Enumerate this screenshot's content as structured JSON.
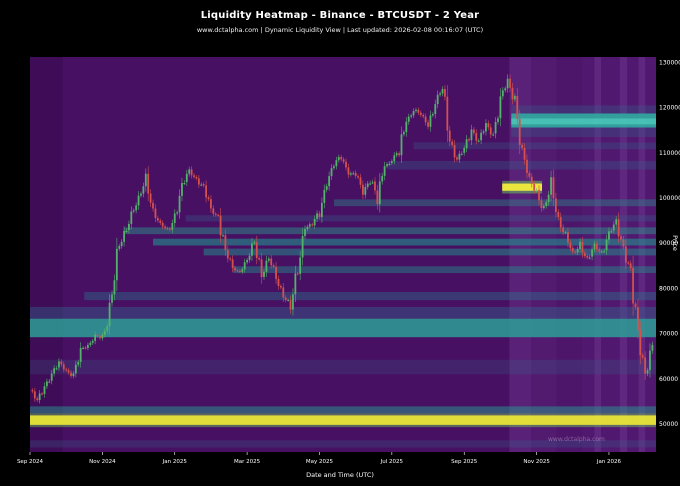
{
  "header": {
    "title": "Liquidity Heatmap - Binance - BTCUSDT - 2 Year",
    "subtitle": "www.dctalpha.com | Dynamic Liquidity View | Last updated: 2026-02-08 00:16:07 (UTC)"
  },
  "watermark": "www.dctalpha.com",
  "axes": {
    "y_label": "Price",
    "x_label": "Date and Time (UTC)",
    "y_ticks": [
      50000,
      60000,
      70000,
      80000,
      90000,
      100000,
      110000,
      120000,
      130000
    ],
    "x_ticks": [
      {
        "label": "Sep 2024",
        "t": 0
      },
      {
        "label": "Nov 2024",
        "t": 2
      },
      {
        "label": "Jan 2025",
        "t": 4
      },
      {
        "label": "Mar 2025",
        "t": 6
      },
      {
        "label": "May 2025",
        "t": 8
      },
      {
        "label": "Jul 2025",
        "t": 10
      },
      {
        "label": "Sep 2025",
        "t": 12
      },
      {
        "label": "Nov 2025",
        "t": 14
      },
      {
        "label": "Jan 2026",
        "t": 16
      }
    ]
  },
  "chart_data": {
    "type": "heatmap",
    "subtype": "liquidity-heatmap-with-candlestick-overlay",
    "title": "Liquidity Heatmap - Binance - BTCUSDT - 2 Year",
    "exchange": "Binance",
    "symbol": "BTCUSDT",
    "range": "2 Year",
    "xlabel": "Date and Time (UTC)",
    "ylabel": "Price",
    "x_start_label": "Sep 2024",
    "t_max": 17.3,
    "ylim": [
      43800,
      131200
    ],
    "legend": "none",
    "grid": false,
    "colors": {
      "background": "#471063",
      "candle_up": "#54b36a",
      "candle_down": "#d7504d",
      "axis_text": "#ffffff"
    },
    "price_series": {
      "unit": "USDT",
      "dt_months": 0.2,
      "closes": [
        57500,
        55000,
        58500,
        61000,
        63500,
        62000,
        60500,
        66500,
        67500,
        69500,
        68500,
        75000,
        88000,
        91500,
        97000,
        99500,
        104000,
        97500,
        94000,
        92500,
        96000,
        102500,
        106000,
        104500,
        102000,
        97500,
        96000,
        88000,
        84500,
        84000,
        86000,
        90500,
        83000,
        86500,
        82500,
        78500,
        76000,
        84500,
        93500,
        94000,
        97000,
        103500,
        107000,
        109500,
        105500,
        105000,
        101500,
        104500,
        99500,
        107500,
        108500,
        110000,
        117500,
        119500,
        118000,
        116500,
        121000,
        124000,
        113000,
        108500,
        110500,
        115500,
        112500,
        116000,
        114000,
        122000,
        125500,
        121500,
        110000,
        104000,
        101500,
        97000,
        103000,
        95500,
        91500,
        87500,
        90000,
        86000,
        89500,
        88000,
        92000,
        94500,
        89000,
        83000,
        70000,
        61000,
        67500
      ]
    },
    "liquidity_bands": [
      {
        "p1": 49300,
        "p2": 52400,
        "t1": 0,
        "t2": 17.3,
        "color": "#6ecf5a",
        "opacity": 0.45
      },
      {
        "p1": 49800,
        "p2": 51900,
        "t1": 0,
        "t2": 17.3,
        "color": "#e8e337",
        "opacity": 0.95
      },
      {
        "p1": 52400,
        "p2": 53900,
        "t1": 0,
        "t2": 17.3,
        "color": "#27988f",
        "opacity": 0.5
      },
      {
        "p1": 44800,
        "p2": 46400,
        "t1": 0,
        "t2": 17.3,
        "color": "#31688e",
        "opacity": 0.25
      },
      {
        "p1": 61000,
        "p2": 64200,
        "t1": 0,
        "t2": 17.3,
        "color": "#31688e",
        "opacity": 0.22
      },
      {
        "p1": 69200,
        "p2": 73300,
        "t1": 0,
        "t2": 17.3,
        "color": "#2aa79a",
        "opacity": 0.8
      },
      {
        "p1": 73300,
        "p2": 75900,
        "t1": 0,
        "t2": 17.3,
        "color": "#31688e",
        "opacity": 0.4
      },
      {
        "p1": 77400,
        "p2": 79200,
        "t1": 1.5,
        "t2": 17.3,
        "color": "#2a788e",
        "opacity": 0.4
      },
      {
        "p1": 83400,
        "p2": 84900,
        "t1": 5.6,
        "t2": 17.3,
        "color": "#21918c",
        "opacity": 0.45
      },
      {
        "p1": 87300,
        "p2": 88800,
        "t1": 4.8,
        "t2": 17.3,
        "color": "#21918c",
        "opacity": 0.5
      },
      {
        "p1": 89500,
        "p2": 91000,
        "t1": 3.4,
        "t2": 17.3,
        "color": "#21918c",
        "opacity": 0.6
      },
      {
        "p1": 92000,
        "p2": 93500,
        "t1": 2.6,
        "t2": 17.3,
        "color": "#2a9d8f",
        "opacity": 0.45
      },
      {
        "p1": 94800,
        "p2": 96200,
        "t1": 4.3,
        "t2": 17.3,
        "color": "#31688e",
        "opacity": 0.3
      },
      {
        "p1": 98200,
        "p2": 99700,
        "t1": 8.4,
        "t2": 17.3,
        "color": "#27918a",
        "opacity": 0.4
      },
      {
        "p1": 106300,
        "p2": 108200,
        "t1": 9.9,
        "t2": 17.3,
        "color": "#31688e",
        "opacity": 0.3
      },
      {
        "p1": 110800,
        "p2": 112300,
        "t1": 10.6,
        "t2": 17.3,
        "color": "#31688e",
        "opacity": 0.28
      },
      {
        "p1": 113500,
        "p2": 120500,
        "t1": 13.3,
        "t2": 17.3,
        "color": "#31688e",
        "opacity": 0.3
      },
      {
        "p1": 115600,
        "p2": 118700,
        "t1": 13.3,
        "t2": 17.3,
        "color": "#2fb3a3",
        "opacity": 0.85
      },
      {
        "p1": 116300,
        "p2": 117600,
        "t1": 13.3,
        "t2": 17.3,
        "color": "#57d6c3",
        "opacity": 0.6
      },
      {
        "p1": 101000,
        "p2": 103800,
        "t1": 13.05,
        "t2": 14.15,
        "color": "#6ecf5a",
        "opacity": 0.5
      },
      {
        "p1": 101600,
        "p2": 103200,
        "t1": 13.05,
        "t2": 14.15,
        "color": "#f2ec3c",
        "opacity": 0.95
      }
    ],
    "background_columns": [
      {
        "t1": 0,
        "t2": 0.9,
        "color": "#380a4e",
        "opacity": 0.55
      },
      {
        "t1": 13.25,
        "t2": 13.85,
        "color": "#8a54b0",
        "opacity": 0.28
      },
      {
        "t1": 13.85,
        "t2": 14.55,
        "color": "#7a44a0",
        "opacity": 0.22
      },
      {
        "t1": 14.55,
        "t2": 15.25,
        "color": "#6a3392",
        "opacity": 0.18
      },
      {
        "t1": 15.25,
        "t2": 17.3,
        "color": "#6a3392",
        "opacity": 0.25
      },
      {
        "t1": 15.6,
        "t2": 15.78,
        "color": "#8a54b0",
        "opacity": 0.25
      },
      {
        "t1": 16.3,
        "t2": 16.5,
        "color": "#8a54b0",
        "opacity": 0.25
      },
      {
        "t1": 16.82,
        "t2": 17.0,
        "color": "#8a54b0",
        "opacity": 0.25
      }
    ]
  }
}
